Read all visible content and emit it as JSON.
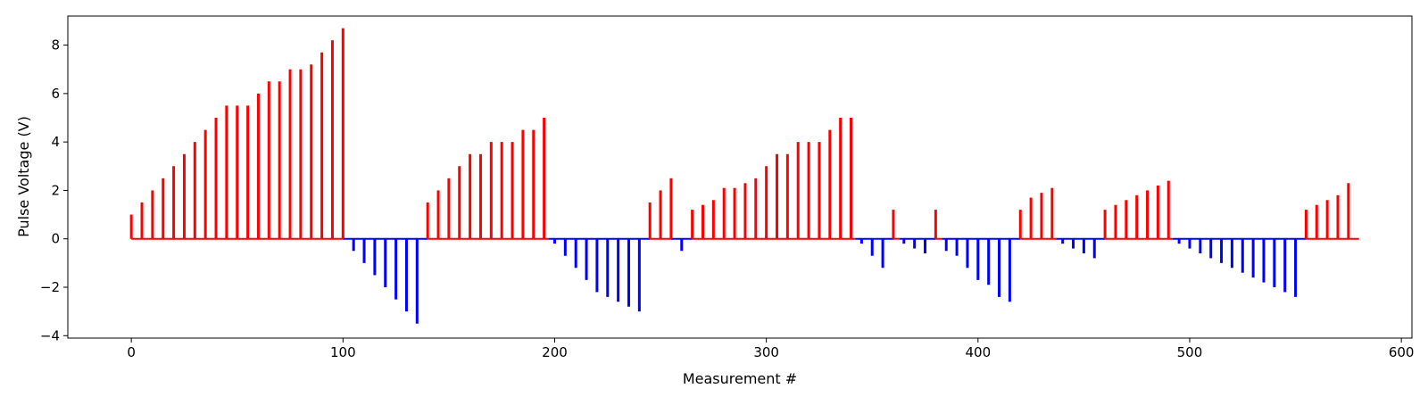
{
  "chart_data": {
    "type": "pulse",
    "xlabel": "Measurement #",
    "ylabel": "Pulse Voltage (V)",
    "xlim": [
      -30,
      605
    ],
    "ylim": [
      -4.1,
      9.2
    ],
    "x_ticks": [
      0,
      100,
      200,
      300,
      400,
      500,
      600
    ],
    "y_ticks": [
      -4,
      -2,
      0,
      2,
      4,
      6,
      8
    ],
    "grid": false,
    "colors": {
      "positive": "#ff0000",
      "negative": "#0000ff"
    },
    "baseline": {
      "segments": [
        {
          "x0": 0,
          "x1": 100,
          "color": "positive"
        },
        {
          "x0": 100,
          "x1": 140,
          "color": "negative"
        },
        {
          "x0": 140,
          "x1": 197,
          "color": "positive"
        },
        {
          "x0": 197,
          "x1": 245,
          "color": "negative"
        },
        {
          "x0": 245,
          "x1": 255,
          "color": "positive"
        },
        {
          "x0": 255,
          "x1": 265,
          "color": "negative"
        },
        {
          "x0": 265,
          "x1": 342,
          "color": "positive"
        },
        {
          "x0": 342,
          "x1": 360,
          "color": "negative"
        },
        {
          "x0": 360,
          "x1": 363,
          "color": "positive"
        },
        {
          "x0": 363,
          "x1": 380,
          "color": "negative"
        },
        {
          "x0": 380,
          "x1": 383,
          "color": "positive"
        },
        {
          "x0": 383,
          "x1": 420,
          "color": "negative"
        },
        {
          "x0": 420,
          "x1": 437,
          "color": "positive"
        },
        {
          "x0": 437,
          "x1": 460,
          "color": "negative"
        },
        {
          "x0": 460,
          "x1": 492,
          "color": "positive"
        },
        {
          "x0": 492,
          "x1": 555,
          "color": "negative"
        },
        {
          "x0": 555,
          "x1": 580,
          "color": "positive"
        }
      ]
    },
    "pulses": {
      "x": [
        0,
        5,
        10,
        15,
        20,
        25,
        30,
        35,
        40,
        45,
        50,
        55,
        60,
        65,
        70,
        75,
        80,
        85,
        90,
        95,
        100,
        105,
        110,
        115,
        120,
        125,
        130,
        135,
        140,
        145,
        150,
        155,
        160,
        165,
        170,
        175,
        180,
        185,
        190,
        195,
        200,
        205,
        210,
        215,
        220,
        225,
        230,
        235,
        240,
        245,
        250,
        255,
        260,
        265,
        270,
        275,
        280,
        285,
        290,
        295,
        300,
        305,
        310,
        315,
        320,
        325,
        330,
        335,
        340,
        345,
        350,
        355,
        360,
        365,
        370,
        375,
        380,
        385,
        390,
        395,
        400,
        405,
        410,
        415,
        420,
        425,
        430,
        435,
        440,
        445,
        450,
        455,
        460,
        465,
        470,
        475,
        480,
        485,
        490,
        495,
        500,
        505,
        510,
        515,
        520,
        525,
        530,
        535,
        540,
        545,
        550,
        555,
        560,
        565,
        570,
        575
      ],
      "y": [
        1.0,
        1.5,
        2.0,
        2.5,
        3.0,
        3.5,
        4.0,
        4.5,
        5.0,
        5.5,
        5.5,
        5.5,
        6.0,
        6.5,
        6.5,
        7.0,
        7.0,
        7.2,
        7.7,
        8.2,
        8.7,
        -0.5,
        -1.0,
        -1.5,
        -2.0,
        -2.5,
        -3.0,
        -3.5,
        1.5,
        2.0,
        2.5,
        3.0,
        3.5,
        3.5,
        4.0,
        4.0,
        4.0,
        4.5,
        4.5,
        5.0,
        -0.2,
        -0.7,
        -1.2,
        -1.7,
        -2.2,
        -2.4,
        -2.6,
        -2.8,
        -3.0,
        1.5,
        2.0,
        2.5,
        -0.5,
        1.2,
        1.4,
        1.6,
        2.1,
        2.1,
        2.3,
        2.5,
        3.0,
        3.5,
        3.5,
        4.0,
        4.0,
        4.0,
        4.5,
        5.0,
        5.0,
        -0.2,
        -0.7,
        -1.2,
        1.2,
        -0.2,
        -0.4,
        -0.6,
        1.2,
        -0.5,
        -0.7,
        -1.2,
        -1.7,
        -1.9,
        -2.4,
        -2.6,
        1.2,
        1.7,
        1.9,
        2.1,
        -0.2,
        -0.4,
        -0.6,
        -0.8,
        1.2,
        1.4,
        1.6,
        1.8,
        2.0,
        2.2,
        2.4,
        -0.2,
        -0.4,
        -0.6,
        -0.8,
        -1.0,
        -1.2,
        -1.4,
        -1.6,
        -1.8,
        -2.0,
        -2.2,
        -2.4,
        1.2,
        1.4,
        1.6,
        1.8,
        2.3
      ]
    }
  }
}
